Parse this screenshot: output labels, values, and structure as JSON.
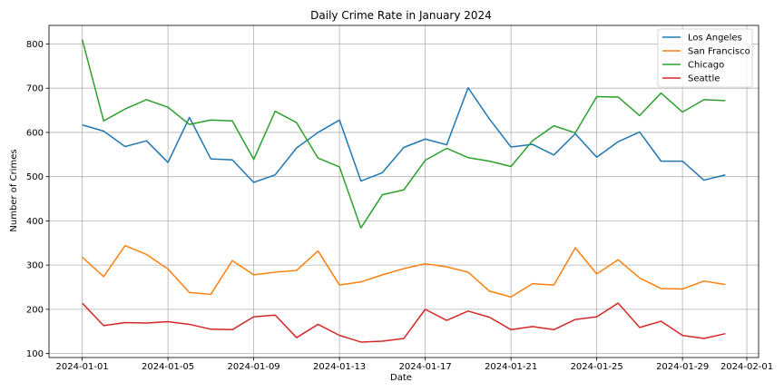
{
  "chart_data": {
    "type": "line",
    "title": "Daily Crime Rate in January 2024",
    "xlabel": "Date",
    "ylabel": "Number of Crimes",
    "x": [
      "2024-01-01",
      "2024-01-02",
      "2024-01-03",
      "2024-01-04",
      "2024-01-05",
      "2024-01-06",
      "2024-01-07",
      "2024-01-08",
      "2024-01-09",
      "2024-01-10",
      "2024-01-11",
      "2024-01-12",
      "2024-01-13",
      "2024-01-14",
      "2024-01-15",
      "2024-01-16",
      "2024-01-17",
      "2024-01-18",
      "2024-01-19",
      "2024-01-20",
      "2024-01-21",
      "2024-01-22",
      "2024-01-23",
      "2024-01-24",
      "2024-01-25",
      "2024-01-26",
      "2024-01-27",
      "2024-01-28",
      "2024-01-29",
      "2024-01-30",
      "2024-01-31"
    ],
    "xlim": [
      "2023-12-30T10:48",
      "2024-02-01T13:12"
    ],
    "x_ticks": [
      "2024-01-01",
      "2024-01-05",
      "2024-01-09",
      "2024-01-13",
      "2024-01-17",
      "2024-01-21",
      "2024-01-25",
      "2024-01-29",
      "2024-02-01"
    ],
    "ylim": [
      91,
      842
    ],
    "y_ticks": [
      100,
      200,
      300,
      400,
      500,
      600,
      700,
      800
    ],
    "grid": true,
    "legend_position": "top-right",
    "series": [
      {
        "name": "Los Angeles",
        "color": "#1f77b4",
        "values": [
          617,
          603,
          568,
          581,
          532,
          634,
          540,
          538,
          487,
          504,
          565,
          600,
          628,
          490,
          509,
          566,
          585,
          572,
          701,
          630,
          567,
          573,
          549,
          597,
          544,
          579,
          601,
          535,
          535,
          492,
          504
        ]
      },
      {
        "name": "San Francisco",
        "color": "#ff7f0e",
        "values": [
          318,
          274,
          344,
          324,
          291,
          238,
          234,
          310,
          278,
          284,
          288,
          332,
          255,
          262,
          278,
          292,
          303,
          296,
          284,
          241,
          228,
          258,
          255,
          339,
          280,
          312,
          271,
          247,
          246,
          264,
          256
        ]
      },
      {
        "name": "Chicago",
        "color": "#2ca02c",
        "values": [
          810,
          626,
          653,
          674,
          657,
          618,
          628,
          626,
          539,
          648,
          622,
          542,
          522,
          384,
          459,
          470,
          537,
          564,
          543,
          535,
          523,
          581,
          615,
          599,
          681,
          680,
          638,
          689,
          646,
          674,
          672
        ]
      },
      {
        "name": "Seattle",
        "color": "#d62728",
        "values": [
          214,
          163,
          170,
          169,
          172,
          166,
          155,
          154,
          183,
          187,
          136,
          166,
          141,
          126,
          128,
          134,
          200,
          175,
          196,
          182,
          154,
          161,
          154,
          177,
          183,
          214,
          159,
          173,
          141,
          134,
          145
        ]
      }
    ]
  }
}
